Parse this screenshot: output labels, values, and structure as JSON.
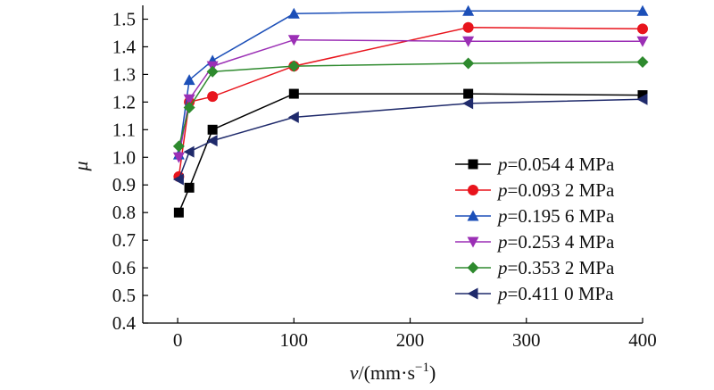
{
  "chart_data": {
    "type": "line",
    "xlabel_var": "v",
    "xlabel_unit": "/(mm·s",
    "xlabel_sup": "−1",
    "xlabel_close": ")",
    "ylabel": "μ",
    "xlim": [
      -30,
      400
    ],
    "ylim": [
      0.4,
      1.55
    ],
    "xticks": [
      0,
      100,
      200,
      300,
      400
    ],
    "yticks": [
      0.4,
      0.5,
      0.6,
      0.7,
      0.8,
      0.9,
      1.0,
      1.1,
      1.2,
      1.3,
      1.4,
      1.5
    ],
    "ytick_labels": [
      "0.4",
      "0.5",
      "0.6",
      "0.7",
      "0.8",
      "0.9",
      "1.0",
      "1.1",
      "1.2",
      "1.3",
      "1.4",
      "1.5"
    ],
    "legend_position": "right",
    "grid": false,
    "series": [
      {
        "name_var": "p",
        "name_value": "=0.054 4 MPa",
        "color": "#000000",
        "marker": "square",
        "x": [
          1,
          10,
          30,
          100,
          250,
          400
        ],
        "y": [
          0.8,
          0.89,
          1.1,
          1.23,
          1.23,
          1.225
        ]
      },
      {
        "name_var": "p",
        "name_value": "=0.093 2 MPa",
        "color": "#e8141c",
        "marker": "circle",
        "x": [
          1,
          10,
          30,
          100,
          250,
          400
        ],
        "y": [
          0.93,
          1.2,
          1.22,
          1.33,
          1.47,
          1.465
        ]
      },
      {
        "name_var": "p",
        "name_value": "=0.195 6 MPa",
        "color": "#1c4fb8",
        "marker": "triangle-up",
        "x": [
          1,
          10,
          30,
          100,
          250,
          400
        ],
        "y": [
          1.01,
          1.28,
          1.35,
          1.52,
          1.53,
          1.53
        ]
      },
      {
        "name_var": "p",
        "name_value": "=0.253 4 MPa",
        "color": "#9b2fb5",
        "marker": "triangle-down",
        "x": [
          1,
          10,
          30,
          100,
          250,
          400
        ],
        "y": [
          1.0,
          1.21,
          1.33,
          1.425,
          1.42,
          1.42
        ]
      },
      {
        "name_var": "p",
        "name_value": "=0.353 2 MPa",
        "color": "#2e8a2e",
        "marker": "diamond",
        "x": [
          1,
          10,
          30,
          100,
          250,
          400
        ],
        "y": [
          1.04,
          1.18,
          1.31,
          1.33,
          1.34,
          1.345
        ]
      },
      {
        "name_var": "p",
        "name_value": "=0.411 0 MPa",
        "color": "#1f2a6b",
        "marker": "triangle-left",
        "x": [
          1,
          10,
          30,
          100,
          250,
          400
        ],
        "y": [
          0.92,
          1.02,
          1.06,
          1.145,
          1.195,
          1.21
        ]
      }
    ]
  }
}
